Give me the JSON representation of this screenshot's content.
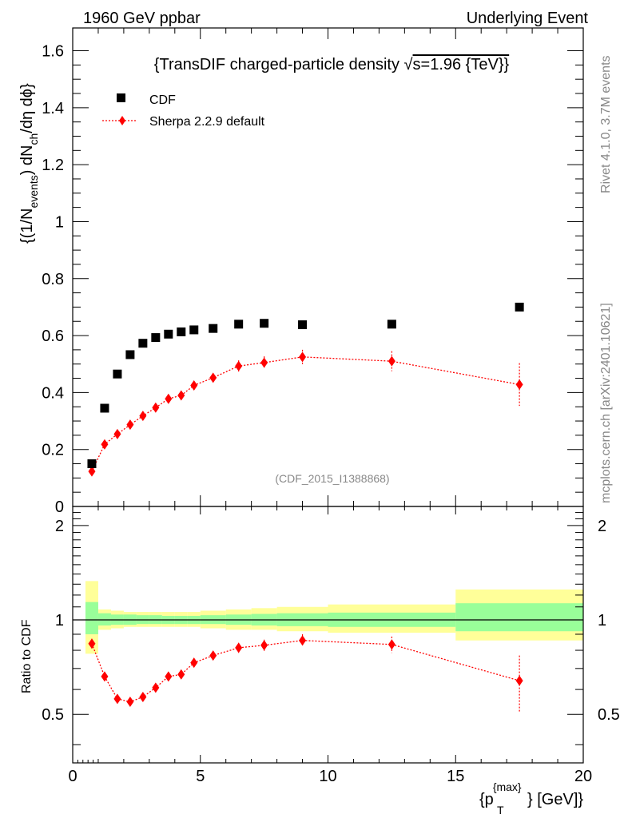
{
  "header": {
    "left": "1960 GeV ppbar",
    "right": "Underlying Event"
  },
  "side_labels": {
    "rivet": "Rivet 4.1.0,  3.7M events",
    "source": "mcplots.cern.ch [arXiv:2401.10621]"
  },
  "main_panel": {
    "title_prefix": "{TransDIF charged-particle density ",
    "title_sqrt": "√",
    "title_suffix": "s=1.96 {TeV}}",
    "ylabel_parts": [
      "{(1/N",
      "events",
      ") dN",
      "ch",
      "/dη dϕ}"
    ],
    "watermark": "(CDF_2015_I1388868)",
    "legend": [
      "CDF",
      "Sherpa 2.2.9 default"
    ],
    "ytick_labels": [
      "0",
      "0.2",
      "0.4",
      "0.6",
      "0.8",
      "1",
      "1.2",
      "1.4",
      "1.6"
    ]
  },
  "ratio_panel": {
    "ylabel": "Ratio to CDF",
    "ytick_labels": [
      "0.5",
      "1",
      "2"
    ]
  },
  "xaxis": {
    "label_main": "{p",
    "label_sub": "T",
    "label_sup": "{max}",
    "label_rest": "} [GeV]}",
    "tick_labels": [
      "0",
      "5",
      "10",
      "15",
      "20"
    ]
  },
  "colors": {
    "data": "#000000",
    "mc": "#ff0000",
    "band_inner": "#99ff99",
    "band_outer": "#ffff99",
    "side_text": "#888888"
  },
  "chart_data": {
    "type": "scatter",
    "xlabel": "{p_T^{max}} [GeV]}",
    "ylabel": "{(1/N_events) dN_ch/dη dϕ}",
    "xlim": [
      0,
      20
    ],
    "ylim": [
      0,
      1.68
    ],
    "ratio_ylim": [
      0.35,
      2.3
    ],
    "series": [
      {
        "name": "CDF",
        "x": [
          0.75,
          1.25,
          1.75,
          2.25,
          2.75,
          3.25,
          3.75,
          4.25,
          4.75,
          5.5,
          6.5,
          7.5,
          9.0,
          12.5,
          17.5
        ],
        "xerr": [
          0.25,
          0.25,
          0.25,
          0.25,
          0.25,
          0.25,
          0.25,
          0.25,
          0.25,
          0.5,
          0.5,
          0.5,
          1.0,
          2.5,
          2.5
        ],
        "y": [
          0.15,
          0.345,
          0.465,
          0.533,
          0.573,
          0.593,
          0.605,
          0.613,
          0.62,
          0.625,
          0.64,
          0.643,
          0.638,
          0.64,
          0.7
        ],
        "band_inner_up": [
          0.14,
          0.05,
          0.04,
          0.04,
          0.035,
          0.035,
          0.03,
          0.03,
          0.03,
          0.035,
          0.04,
          0.045,
          0.05,
          0.055,
          0.13
        ],
        "band_inner_dn": [
          0.1,
          0.04,
          0.035,
          0.035,
          0.03,
          0.03,
          0.03,
          0.03,
          0.03,
          0.03,
          0.035,
          0.04,
          0.045,
          0.05,
          0.08
        ],
        "band_outer_up": [
          0.33,
          0.08,
          0.07,
          0.06,
          0.06,
          0.06,
          0.06,
          0.06,
          0.06,
          0.07,
          0.08,
          0.09,
          0.1,
          0.12,
          0.25
        ],
        "band_outer_dn": [
          0.22,
          0.07,
          0.06,
          0.05,
          0.05,
          0.05,
          0.05,
          0.05,
          0.05,
          0.06,
          0.07,
          0.07,
          0.08,
          0.09,
          0.14
        ]
      },
      {
        "name": "Sherpa 2.2.9 default",
        "x": [
          0.75,
          1.25,
          1.75,
          2.25,
          2.75,
          3.25,
          3.75,
          4.25,
          4.75,
          5.5,
          6.5,
          7.5,
          9.0,
          12.5,
          17.5
        ],
        "y": [
          0.123,
          0.218,
          0.254,
          0.287,
          0.318,
          0.347,
          0.378,
          0.39,
          0.425,
          0.452,
          0.493,
          0.505,
          0.525,
          0.51,
          0.428
        ],
        "yerr": [
          0.01,
          0.01,
          0.01,
          0.01,
          0.01,
          0.012,
          0.012,
          0.012,
          0.015,
          0.015,
          0.02,
          0.022,
          0.025,
          0.035,
          0.075
        ],
        "ratio": [
          0.84,
          0.66,
          0.56,
          0.548,
          0.568,
          0.608,
          0.66,
          0.67,
          0.73,
          0.77,
          0.815,
          0.83,
          0.86,
          0.835,
          0.64
        ],
        "ratio_err": [
          0.03,
          0.02,
          0.02,
          0.02,
          0.02,
          0.02,
          0.02,
          0.02,
          0.025,
          0.025,
          0.03,
          0.035,
          0.04,
          0.05,
          0.13
        ]
      }
    ]
  }
}
